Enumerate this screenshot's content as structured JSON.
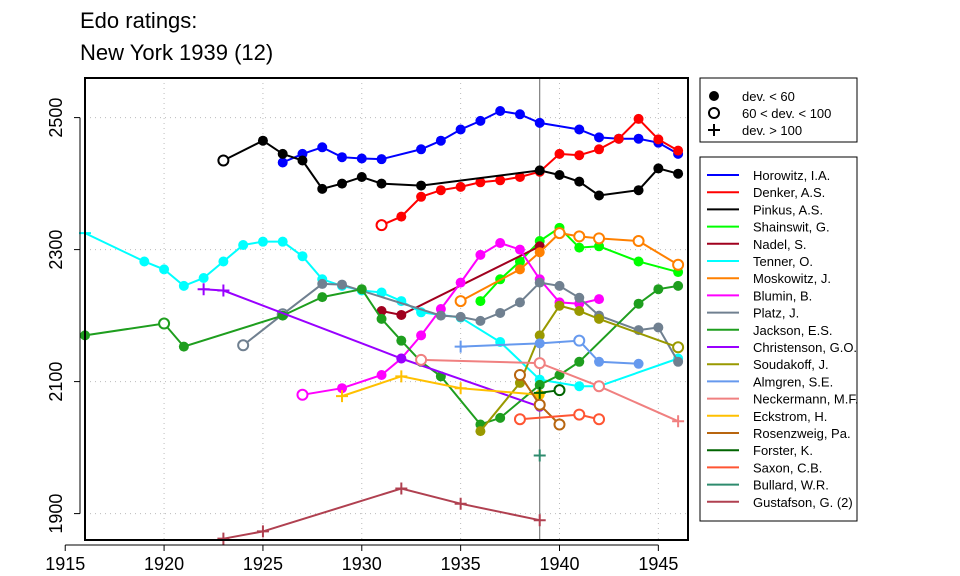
{
  "title_line1": "Edo ratings:",
  "title_line2": "New York 1939 (12)",
  "chart_data": {
    "type": "line",
    "xlim": [
      1916,
      1946.5
    ],
    "ylim": [
      1860,
      2560
    ],
    "x_ticks": [
      1915,
      1920,
      1925,
      1930,
      1935,
      1940,
      1945
    ],
    "y_ticks": [
      1900,
      2100,
      2300,
      2500
    ],
    "grid": true,
    "reference_line_x": 1939,
    "marker_legend": {
      "placement": "top-right",
      "entries": [
        {
          "marker": "filled-circle",
          "label": "dev. < 60"
        },
        {
          "marker": "open-circle",
          "label": "60 < dev. < 100"
        },
        {
          "marker": "plus",
          "label": "dev. > 100"
        }
      ]
    },
    "series": [
      {
        "name": "Horowitz, I.A.",
        "color": "#0000ff",
        "points": [
          [
            1926,
            2432,
            "f"
          ],
          [
            1927,
            2445,
            "f"
          ],
          [
            1928,
            2455,
            "f"
          ],
          [
            1929,
            2440,
            "f"
          ],
          [
            1930,
            2438,
            "f"
          ],
          [
            1931,
            2437,
            "f"
          ],
          [
            1933,
            2452,
            "f"
          ],
          [
            1934,
            2465,
            "f"
          ],
          [
            1935,
            2482,
            "f"
          ],
          [
            1936,
            2495,
            "f"
          ],
          [
            1937,
            2510,
            "f"
          ],
          [
            1938,
            2505,
            "f"
          ],
          [
            1939,
            2492,
            "f"
          ],
          [
            1941,
            2482,
            "f"
          ],
          [
            1942,
            2470,
            "f"
          ],
          [
            1943,
            2468,
            "f"
          ],
          [
            1944,
            2468,
            "f"
          ],
          [
            1945,
            2462,
            "f"
          ],
          [
            1946,
            2445,
            "f"
          ]
        ]
      },
      {
        "name": "Denker, A.S.",
        "color": "#ff0000",
        "points": [
          [
            1931,
            2337,
            "o"
          ],
          [
            1932,
            2350,
            "f"
          ],
          [
            1933,
            2380,
            "f"
          ],
          [
            1934,
            2390,
            "f"
          ],
          [
            1935,
            2395,
            "f"
          ],
          [
            1936,
            2402,
            "f"
          ],
          [
            1937,
            2405,
            "f"
          ],
          [
            1938,
            2410,
            "f"
          ],
          [
            1939,
            2418,
            "f"
          ],
          [
            1940,
            2445,
            "f"
          ],
          [
            1941,
            2443,
            "f"
          ],
          [
            1942,
            2452,
            "f"
          ],
          [
            1943,
            2468,
            "f"
          ],
          [
            1944,
            2498,
            "f"
          ],
          [
            1945,
            2467,
            "f"
          ],
          [
            1946,
            2450,
            "f"
          ]
        ]
      },
      {
        "name": "Pinkus, A.S.",
        "color": "#000000",
        "points": [
          [
            1923,
            2435,
            "o"
          ],
          [
            1925,
            2465,
            "f"
          ],
          [
            1926,
            2445,
            "f"
          ],
          [
            1927,
            2435,
            "f"
          ],
          [
            1928,
            2392,
            "f"
          ],
          [
            1929,
            2400,
            "f"
          ],
          [
            1930,
            2410,
            "f"
          ],
          [
            1931,
            2400,
            "f"
          ],
          [
            1933,
            2397,
            "f"
          ],
          [
            1939,
            2420,
            "f"
          ],
          [
            1940,
            2413,
            "f"
          ],
          [
            1941,
            2403,
            "f"
          ],
          [
            1942,
            2382,
            "f"
          ],
          [
            1944,
            2390,
            "f"
          ],
          [
            1945,
            2423,
            "f"
          ],
          [
            1946,
            2415,
            "f"
          ]
        ]
      },
      {
        "name": "Shainswit, G.",
        "color": "#00ff00",
        "points": [
          [
            1936,
            2222,
            "f"
          ],
          [
            1937,
            2255,
            "f"
          ],
          [
            1938,
            2282,
            "f"
          ],
          [
            1939,
            2313,
            "f"
          ],
          [
            1940,
            2333,
            "f"
          ],
          [
            1941,
            2303,
            "f"
          ],
          [
            1942,
            2305,
            "f"
          ],
          [
            1944,
            2282,
            "f"
          ],
          [
            1946,
            2266,
            "f"
          ]
        ]
      },
      {
        "name": "Nadel, S.",
        "color": "#a0001e",
        "points": [
          [
            1931,
            2207,
            "f"
          ],
          [
            1932,
            2201,
            "f"
          ],
          [
            1939,
            2305,
            "f"
          ]
        ]
      },
      {
        "name": "Tenner, O.",
        "color": "#00ffff",
        "points": [
          [
            1916,
            2325,
            "p"
          ],
          [
            1919,
            2282,
            "f"
          ],
          [
            1920,
            2270,
            "f"
          ],
          [
            1921,
            2245,
            "f"
          ],
          [
            1922,
            2257,
            "f"
          ],
          [
            1923,
            2282,
            "f"
          ],
          [
            1924,
            2307,
            "f"
          ],
          [
            1925,
            2312,
            "f"
          ],
          [
            1926,
            2312,
            "f"
          ],
          [
            1927,
            2290,
            "f"
          ],
          [
            1928,
            2255,
            "f"
          ],
          [
            1929,
            2245,
            "f"
          ],
          [
            1930,
            2238,
            "f"
          ],
          [
            1931,
            2235,
            "f"
          ],
          [
            1932,
            2222,
            "f"
          ],
          [
            1933,
            2205,
            "f"
          ],
          [
            1935,
            2197,
            "f"
          ],
          [
            1937,
            2160,
            "f"
          ],
          [
            1939,
            2103,
            "f"
          ],
          [
            1941,
            2093,
            "f"
          ],
          [
            1942,
            2093,
            "f"
          ],
          [
            1946,
            2135,
            "f"
          ]
        ]
      },
      {
        "name": "Moskowitz, J.",
        "color": "#ff8000",
        "points": [
          [
            1935,
            2222,
            "o"
          ],
          [
            1938,
            2270,
            "f"
          ],
          [
            1939,
            2296,
            "f"
          ],
          [
            1940,
            2325,
            "o"
          ],
          [
            1941,
            2320,
            "o"
          ],
          [
            1942,
            2317,
            "o"
          ],
          [
            1944,
            2313,
            "o"
          ],
          [
            1946,
            2277,
            "o"
          ]
        ]
      },
      {
        "name": "Blumin, B.",
        "color": "#ff00ff",
        "points": [
          [
            1927,
            2080,
            "o"
          ],
          [
            1929,
            2090,
            "f"
          ],
          [
            1931,
            2110,
            "f"
          ],
          [
            1932,
            2135,
            "f"
          ],
          [
            1933,
            2170,
            "f"
          ],
          [
            1934,
            2210,
            "f"
          ],
          [
            1935,
            2250,
            "f"
          ],
          [
            1936,
            2292,
            "f"
          ],
          [
            1937,
            2310,
            "f"
          ],
          [
            1938,
            2300,
            "f"
          ],
          [
            1939,
            2255,
            "f"
          ],
          [
            1940,
            2220,
            "f"
          ],
          [
            1941,
            2218,
            "f"
          ],
          [
            1942,
            2225,
            "f"
          ]
        ]
      },
      {
        "name": "Platz, J.",
        "color": "#708090",
        "points": [
          [
            1924,
            2155,
            "o"
          ],
          [
            1926,
            2202,
            "o"
          ],
          [
            1928,
            2248,
            "f"
          ],
          [
            1929,
            2247,
            "f"
          ],
          [
            1934,
            2200,
            "f"
          ],
          [
            1935,
            2198,
            "f"
          ],
          [
            1936,
            2192,
            "f"
          ],
          [
            1937,
            2204,
            "f"
          ],
          [
            1938,
            2220,
            "f"
          ],
          [
            1939,
            2250,
            "f"
          ],
          [
            1940,
            2245,
            "f"
          ],
          [
            1941,
            2227,
            "f"
          ],
          [
            1942,
            2200,
            "f"
          ],
          [
            1944,
            2178,
            "f"
          ],
          [
            1945,
            2182,
            "f"
          ],
          [
            1946,
            2130,
            "f"
          ]
        ]
      },
      {
        "name": "Jackson, E.S.",
        "color": "#1e9e1e",
        "points": [
          [
            1916,
            2170,
            "f"
          ],
          [
            1920,
            2188,
            "o"
          ],
          [
            1921,
            2153,
            "f"
          ],
          [
            1926,
            2200,
            "f"
          ],
          [
            1928,
            2228,
            "f"
          ],
          [
            1930,
            2240,
            "f"
          ],
          [
            1931,
            2195,
            "f"
          ],
          [
            1932,
            2162,
            "f"
          ],
          [
            1933,
            2130,
            "f"
          ],
          [
            1934,
            2108,
            "f"
          ],
          [
            1936,
            2035,
            "f"
          ],
          [
            1937,
            2045,
            "f"
          ],
          [
            1939,
            2095,
            "f"
          ],
          [
            1940,
            2110,
            "f"
          ],
          [
            1941,
            2130,
            "f"
          ],
          [
            1944,
            2218,
            "f"
          ],
          [
            1945,
            2240,
            "f"
          ],
          [
            1946,
            2245,
            "f"
          ]
        ]
      },
      {
        "name": "Christenson, G.O.",
        "color": "#9900ff",
        "points": [
          [
            1922,
            2240,
            "p"
          ],
          [
            1923,
            2238,
            "p"
          ],
          [
            1932,
            2135,
            "f"
          ],
          [
            1939,
            2062,
            "f"
          ]
        ]
      },
      {
        "name": "Soudakoff, J.",
        "color": "#999900",
        "points": [
          [
            1936,
            2025,
            "f"
          ],
          [
            1938,
            2098,
            "f"
          ],
          [
            1939,
            2170,
            "f"
          ],
          [
            1940,
            2215,
            "f"
          ],
          [
            1941,
            2207,
            "f"
          ],
          [
            1942,
            2195,
            "f"
          ],
          [
            1946,
            2152,
            "o"
          ]
        ]
      },
      {
        "name": "Almgren, S.E.",
        "color": "#6699ee",
        "points": [
          [
            1935,
            2153,
            "p"
          ],
          [
            1939,
            2158,
            "f"
          ],
          [
            1941,
            2162,
            "o"
          ],
          [
            1942,
            2130,
            "f"
          ],
          [
            1944,
            2127,
            "f"
          ]
        ]
      },
      {
        "name": "Neckermann, M.F.",
        "color": "#f08080",
        "points": [
          [
            1933,
            2133,
            "o"
          ],
          [
            1939,
            2128,
            "o"
          ],
          [
            1942,
            2093,
            "o"
          ],
          [
            1946,
            2040,
            "p"
          ]
        ]
      },
      {
        "name": "Eckstrom, H.",
        "color": "#ffc000",
        "points": [
          [
            1929,
            2078,
            "p"
          ],
          [
            1932,
            2108,
            "p"
          ],
          [
            1935,
            2090,
            "p"
          ],
          [
            1939,
            2080,
            "f"
          ]
        ]
      },
      {
        "name": "Rosenzweig, Pa.",
        "color": "#b8650f",
        "points": [
          [
            1938,
            2110,
            "o"
          ],
          [
            1939,
            2065,
            "o"
          ],
          [
            1940,
            2035,
            "o"
          ]
        ]
      },
      {
        "name": "Forster, K.",
        "color": "#006400",
        "points": [
          [
            1939,
            2083,
            "p"
          ],
          [
            1940,
            2087,
            "o"
          ]
        ]
      },
      {
        "name": "Saxon, C.B.",
        "color": "#ff5533",
        "points": [
          [
            1938,
            2043,
            "o"
          ],
          [
            1941,
            2050,
            "o"
          ],
          [
            1942,
            2043,
            "o"
          ]
        ]
      },
      {
        "name": "Bullard, W.R.",
        "color": "#2e8b6e",
        "points": [
          [
            1939,
            1988,
            "p"
          ]
        ]
      },
      {
        "name": "Gustafson, G. (2)",
        "color": "#b04050",
        "points": [
          [
            1923,
            1862,
            "p"
          ],
          [
            1925,
            1873,
            "p"
          ],
          [
            1932,
            1938,
            "p"
          ],
          [
            1935,
            1915,
            "p"
          ],
          [
            1939,
            1890,
            "p"
          ]
        ]
      }
    ]
  }
}
